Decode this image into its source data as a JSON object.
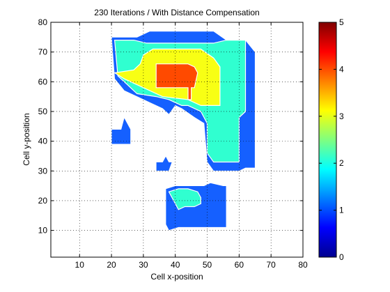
{
  "chart_data": {
    "type": "heatmap",
    "title": "230 Iterations / With Distance Compensation",
    "xlabel": "Cell x-position",
    "ylabel": "Cell y-position",
    "xlim": [
      1,
      80
    ],
    "ylim": [
      1,
      80
    ],
    "xticks": [
      10,
      20,
      30,
      40,
      50,
      60,
      70,
      80
    ],
    "yticks": [
      10,
      20,
      30,
      40,
      50,
      60,
      70,
      80
    ],
    "grid": "dotted",
    "colormap": "jet",
    "colorbar": {
      "min": 0,
      "max": 5,
      "ticks": [
        0,
        1,
        2,
        3,
        4,
        5
      ]
    },
    "levels": [
      {
        "value": 1.1,
        "color": "#1560ff"
      },
      {
        "value": 2.1,
        "color": "#30ffd0"
      },
      {
        "value": 3.2,
        "color": "#f8ff14"
      },
      {
        "value": 4.5,
        "color": "#ff4a00"
      }
    ],
    "regions": [
      {
        "level": 1.1,
        "polygon": [
          [
            20,
            75
          ],
          [
            28,
            75
          ],
          [
            32,
            77
          ],
          [
            52,
            77
          ],
          [
            56,
            74
          ],
          [
            62,
            74
          ],
          [
            65,
            70
          ],
          [
            65,
            31
          ],
          [
            62,
            31
          ],
          [
            60,
            30
          ],
          [
            52,
            30
          ],
          [
            50,
            33
          ],
          [
            49,
            46
          ],
          [
            46,
            48
          ],
          [
            42,
            51
          ],
          [
            40,
            52
          ],
          [
            38,
            49
          ],
          [
            36,
            51
          ],
          [
            32,
            53
          ],
          [
            28,
            55
          ],
          [
            24,
            57
          ],
          [
            21,
            61
          ]
        ]
      },
      {
        "level": 2.1,
        "polygon": [
          [
            21,
            74
          ],
          [
            27,
            74
          ],
          [
            31,
            73
          ],
          [
            52,
            73
          ],
          [
            56,
            74
          ],
          [
            62,
            74
          ],
          [
            62,
            50
          ],
          [
            60,
            48
          ],
          [
            60,
            33
          ],
          [
            52,
            33
          ],
          [
            50,
            36
          ],
          [
            50,
            46
          ],
          [
            48,
            50
          ],
          [
            44,
            52
          ],
          [
            42,
            52
          ],
          [
            38,
            54
          ],
          [
            34,
            55
          ],
          [
            28,
            56
          ],
          [
            25,
            59
          ],
          [
            22,
            62
          ]
        ]
      },
      {
        "level": 3.2,
        "polygon": [
          [
            30,
            69
          ],
          [
            33,
            71
          ],
          [
            48,
            71
          ],
          [
            52,
            68
          ],
          [
            54,
            65
          ],
          [
            54,
            52
          ],
          [
            48,
            52
          ],
          [
            44,
            54
          ],
          [
            36,
            55
          ],
          [
            30,
            58
          ],
          [
            24,
            61
          ],
          [
            21,
            63
          ],
          [
            27,
            64
          ],
          [
            29,
            66
          ]
        ]
      },
      {
        "level": 4.5,
        "polygon": [
          [
            34,
            66
          ],
          [
            44,
            66
          ],
          [
            46,
            65
          ],
          [
            47,
            63
          ],
          [
            46,
            58
          ],
          [
            45,
            58
          ],
          [
            45,
            54
          ],
          [
            44,
            54
          ],
          [
            44,
            58
          ],
          [
            34,
            58
          ]
        ]
      },
      {
        "level": 1.1,
        "polygon": [
          [
            20,
            44
          ],
          [
            23,
            44
          ],
          [
            24,
            48
          ],
          [
            26,
            44
          ],
          [
            26,
            39
          ],
          [
            20,
            39
          ]
        ]
      },
      {
        "level": 1.1,
        "polygon": [
          [
            34,
            33
          ],
          [
            36,
            33
          ],
          [
            37,
            35
          ],
          [
            38,
            33
          ],
          [
            39,
            33
          ],
          [
            38,
            30
          ],
          [
            34,
            30
          ]
        ]
      },
      {
        "level": 1.1,
        "polygon": [
          [
            37,
            24
          ],
          [
            40,
            25
          ],
          [
            49,
            25
          ],
          [
            51,
            26
          ],
          [
            55,
            25
          ],
          [
            56,
            25
          ],
          [
            56,
            11
          ],
          [
            41,
            11
          ],
          [
            38,
            10
          ],
          [
            37,
            12
          ]
        ]
      },
      {
        "level": 2.1,
        "polygon": [
          [
            38,
            23
          ],
          [
            41,
            24
          ],
          [
            44,
            24
          ],
          [
            47,
            23
          ],
          [
            48,
            21
          ],
          [
            48,
            19
          ],
          [
            46,
            18
          ],
          [
            43,
            18
          ],
          [
            41,
            17
          ],
          [
            40,
            19
          ]
        ]
      }
    ]
  }
}
